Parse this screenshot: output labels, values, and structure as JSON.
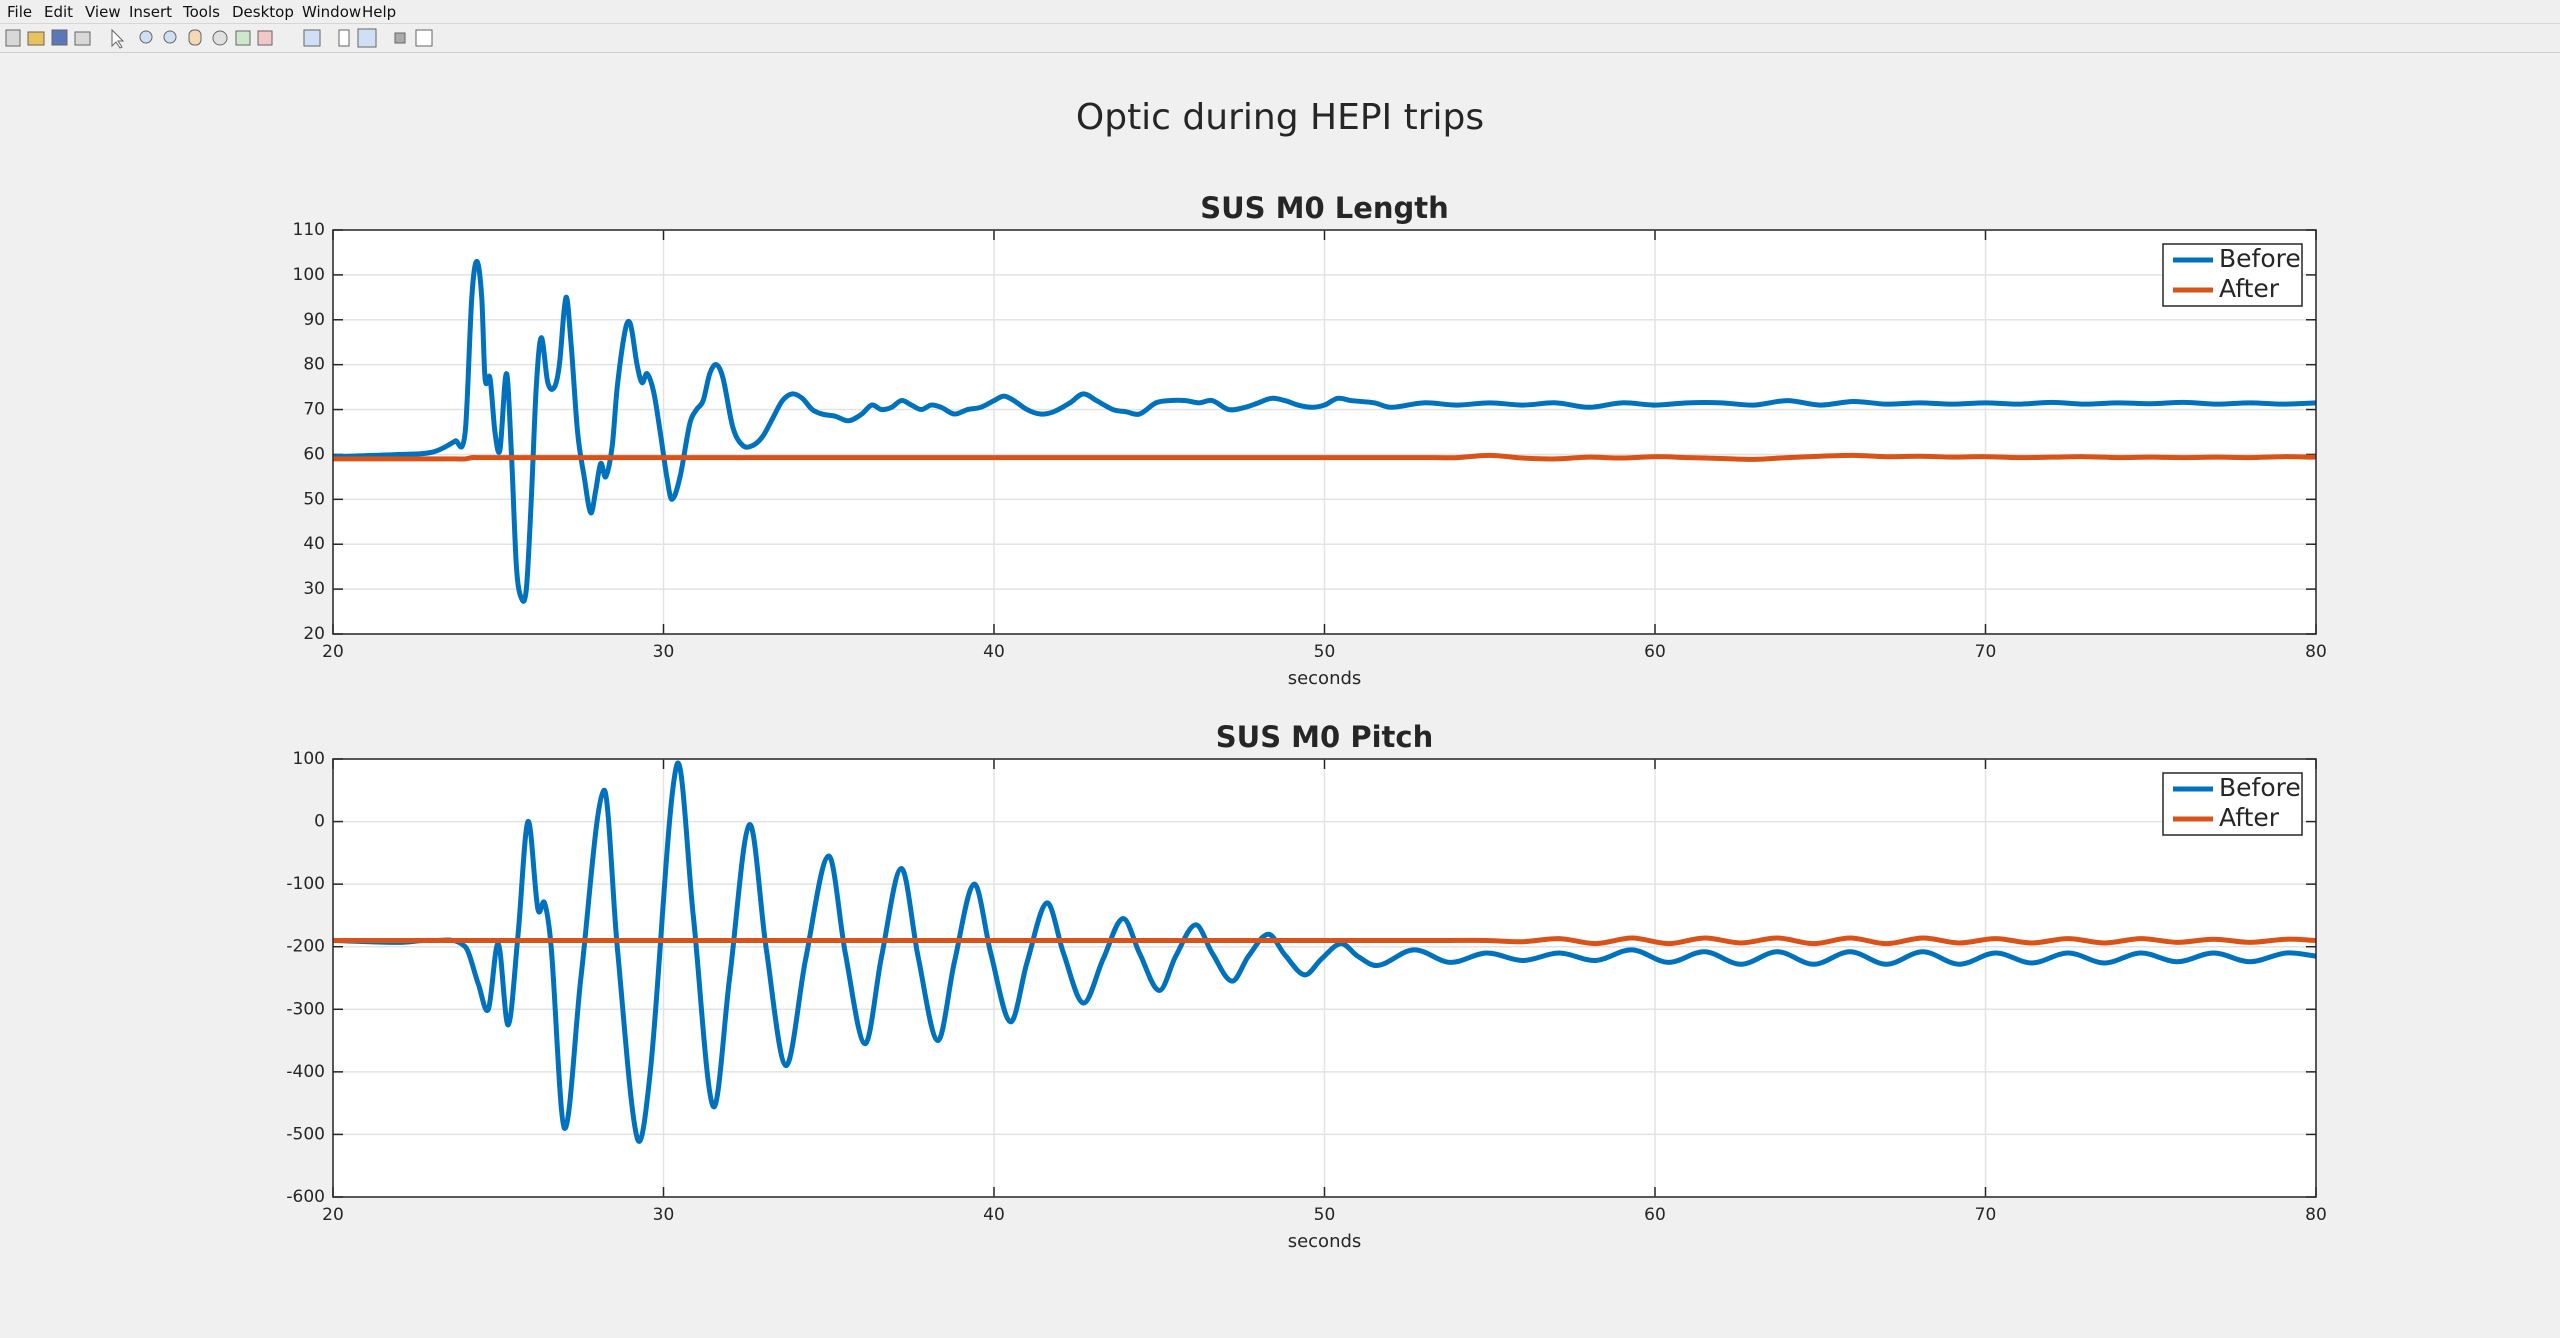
{
  "menu": [
    "File",
    "Edit",
    "View",
    "Insert",
    "Tools",
    "Desktop",
    "Window",
    "Help"
  ],
  "title": "Optic during HEPI trips",
  "chart_data": [
    {
      "type": "line",
      "title": "SUS M0 Length",
      "xlabel": "seconds",
      "x": [
        20,
        22,
        23,
        23.7,
        24.0,
        24.2,
        24.35,
        24.5,
        24.6,
        24.75,
        24.9,
        25.05,
        25.25,
        25.4,
        25.55,
        25.7,
        25.85,
        26.0,
        26.15,
        26.3,
        26.5,
        26.7,
        26.85,
        27.05,
        27.2,
        27.4,
        27.6,
        27.8,
        27.95,
        28.1,
        28.25,
        28.45,
        28.6,
        28.85,
        29.0,
        29.2,
        29.35,
        29.5,
        29.7,
        29.9,
        30.1,
        30.25,
        30.5,
        30.8,
        31.0,
        31.2,
        31.4,
        31.6,
        31.8,
        32.1,
        32.4,
        32.7,
        33.0,
        33.3,
        33.6,
        33.9,
        34.2,
        34.5,
        34.8,
        35.2,
        35.6,
        36.0,
        36.3,
        36.6,
        36.9,
        37.2,
        37.5,
        37.8,
        38.1,
        38.4,
        38.8,
        39.2,
        39.6,
        40.0,
        40.3,
        40.6,
        41.0,
        41.4,
        41.8,
        42.3,
        42.7,
        43.1,
        43.6,
        44.0,
        44.4,
        44.9,
        45.3,
        45.8,
        46.2,
        46.6,
        47.1,
        47.6,
        48.0,
        48.4,
        48.8,
        49.2,
        49.6,
        50.0,
        50.4,
        50.8,
        51.5,
        52,
        53,
        54,
        55,
        56,
        57,
        58,
        59,
        60,
        61,
        62,
        63,
        64,
        65,
        66,
        67,
        68,
        69,
        70,
        71,
        72,
        73,
        74,
        75,
        76,
        77,
        78,
        79,
        80
      ],
      "series": [
        {
          "name": "Before",
          "color": "#0072bd",
          "values": [
            59.5,
            60,
            60.5,
            63,
            65,
            95,
            103,
            95,
            77,
            77,
            65,
            61,
            78,
            60,
            35,
            28,
            30,
            50,
            75,
            86,
            76,
            75,
            80,
            95,
            85,
            65,
            55,
            47,
            52,
            58,
            55,
            62,
            75,
            88,
            89,
            80,
            76,
            78,
            74,
            65,
            55,
            50,
            55,
            67,
            70,
            72,
            78,
            80,
            77,
            66,
            62,
            62,
            64,
            68,
            72,
            73.5,
            72.5,
            70,
            69,
            68.5,
            67.5,
            69,
            71,
            70,
            70.5,
            72,
            71,
            70,
            71,
            70.5,
            69,
            70,
            70.5,
            72,
            73,
            72,
            70,
            69,
            69.5,
            71.5,
            73.5,
            72,
            70,
            69.5,
            69,
            71.5,
            72,
            72,
            71.5,
            72,
            70,
            70.5,
            71.5,
            72.5,
            72,
            71,
            70.5,
            71,
            72.5,
            72,
            71.5,
            70.5,
            71.5,
            71,
            71.5,
            71,
            71.5,
            70.5,
            71.5,
            71,
            71.5,
            71.5,
            71,
            72,
            71,
            71.8,
            71.2,
            71.5,
            71.2,
            71.5,
            71.2,
            71.6,
            71.2,
            71.5,
            71.3,
            71.6,
            71.2,
            71.5,
            71.2,
            71.5
          ]
        },
        {
          "name": "After",
          "color": "#d95319",
          "values": [
            59,
            59,
            59,
            59,
            59,
            59.3,
            59.3,
            59.3,
            59.3,
            59.3,
            59.3,
            59.3,
            59.3,
            59.3,
            59.3,
            59.3,
            59.3,
            59.3,
            59.3,
            59.3,
            59.3,
            59.3,
            59.3,
            59.3,
            59.3,
            59.3,
            59.3,
            59.3,
            59.3,
            59.3,
            59.3,
            59.3,
            59.3,
            59.3,
            59.3,
            59.3,
            59.3,
            59.3,
            59.3,
            59.3,
            59.3,
            59.3,
            59.3,
            59.3,
            59.3,
            59.3,
            59.3,
            59.3,
            59.3,
            59.3,
            59.3,
            59.3,
            59.3,
            59.3,
            59.3,
            59.3,
            59.3,
            59.3,
            59.3,
            59.3,
            59.3,
            59.3,
            59.3,
            59.3,
            59.3,
            59.3,
            59.3,
            59.3,
            59.3,
            59.3,
            59.3,
            59.3,
            59.3,
            59.3,
            59.3,
            59.3,
            59.3,
            59.3,
            59.3,
            59.3,
            59.3,
            59.3,
            59.3,
            59.3,
            59.3,
            59.3,
            59.3,
            59.3,
            59.3,
            59.3,
            59.3,
            59.3,
            59.3,
            59.3,
            59.3,
            59.3,
            59.3,
            59.3,
            59.3,
            59.3,
            59.3,
            59.3,
            59.3,
            59.3,
            59.8,
            59.2,
            59.0,
            59.4,
            59.2,
            59.5,
            59.3,
            59.1,
            58.9,
            59.3,
            59.6,
            59.8,
            59.5,
            59.6,
            59.4,
            59.5,
            59.3,
            59.4,
            59.5,
            59.3,
            59.4,
            59.3,
            59.4,
            59.3,
            59.5,
            59.4
          ]
        }
      ],
      "xlim": [
        20,
        80
      ],
      "xticks": [
        20,
        30,
        40,
        50,
        60,
        70,
        80
      ],
      "ylim": [
        20,
        110
      ],
      "yticks": [
        20,
        30,
        40,
        50,
        60,
        70,
        80,
        90,
        100,
        110
      ],
      "grid": true,
      "legend": "upper right"
    },
    {
      "type": "line",
      "title": "SUS M0 Pitch",
      "xlabel": "seconds",
      "x": [
        20,
        22,
        23,
        24.0,
        24.4,
        24.7,
        25.0,
        25.3,
        25.6,
        25.9,
        26.2,
        26.4,
        26.6,
        27.0,
        27.5,
        28.2,
        28.6,
        29.2,
        29.6,
        30.4,
        30.9,
        31.5,
        32.0,
        32.6,
        33.1,
        33.7,
        34.3,
        35.0,
        35.5,
        36.1,
        36.6,
        37.2,
        37.7,
        38.3,
        38.8,
        39.4,
        39.9,
        40.5,
        41.0,
        41.6,
        42.1,
        42.7,
        43.3,
        43.9,
        44.4,
        45.0,
        45.5,
        46.1,
        46.6,
        47.2,
        47.7,
        48.3,
        48.8,
        49.4,
        49.9,
        50.5,
        51.0,
        51.6,
        52.7,
        53.8,
        54.9,
        56.0,
        57.1,
        58.2,
        59.3,
        60.4,
        61.5,
        62.6,
        63.7,
        64.8,
        65.9,
        67.0,
        68.1,
        69.2,
        70.3,
        71.4,
        72.5,
        73.6,
        74.7,
        75.8,
        76.9,
        78.0,
        79.1,
        80
      ],
      "series": [
        {
          "name": "Before",
          "color": "#0072bd",
          "values": [
            -190,
            -193,
            -190,
            -200,
            -260,
            -300,
            -195,
            -325,
            -180,
            0,
            -140,
            -130,
            -200,
            -490,
            -250,
            50,
            -200,
            -505,
            -400,
            90,
            -150,
            -455,
            -250,
            -5,
            -200,
            -390,
            -220,
            -55,
            -210,
            -355,
            -215,
            -75,
            -215,
            -350,
            -225,
            -100,
            -210,
            -320,
            -225,
            -130,
            -210,
            -290,
            -220,
            -155,
            -210,
            -270,
            -215,
            -165,
            -210,
            -255,
            -215,
            -180,
            -213,
            -245,
            -220,
            -195,
            -215,
            -230,
            -205,
            -225,
            -210,
            -222,
            -210,
            -222,
            -205,
            -225,
            -208,
            -228,
            -208,
            -228,
            -208,
            -228,
            -208,
            -228,
            -210,
            -226,
            -210,
            -226,
            -210,
            -224,
            -210,
            -224,
            -210,
            -215
          ]
        },
        {
          "name": "After",
          "color": "#d95319",
          "values": [
            -190,
            -190,
            -190,
            -190,
            -190,
            -190,
            -190,
            -190,
            -190,
            -190,
            -190,
            -190,
            -190,
            -190,
            -190,
            -190,
            -190,
            -190,
            -190,
            -190,
            -190,
            -190,
            -190,
            -190,
            -190,
            -190,
            -190,
            -190,
            -190,
            -190,
            -190,
            -190,
            -190,
            -190,
            -190,
            -190,
            -190,
            -190,
            -190,
            -190,
            -190,
            -190,
            -190,
            -190,
            -190,
            -190,
            -190,
            -190,
            -190,
            -190,
            -190,
            -190,
            -190,
            -190,
            -190,
            -190,
            -190,
            -190,
            -190,
            -190,
            -190,
            -192,
            -187,
            -195,
            -186,
            -195,
            -186,
            -194,
            -186,
            -195,
            -186,
            -195,
            -186,
            -194,
            -187,
            -194,
            -187,
            -194,
            -187,
            -193,
            -188,
            -193,
            -188,
            -190
          ]
        }
      ],
      "xlim": [
        20,
        80
      ],
      "xticks": [
        20,
        30,
        40,
        50,
        60,
        70,
        80
      ],
      "ylim": [
        -600,
        100
      ],
      "yticks": [
        -600,
        -500,
        -400,
        -300,
        -200,
        -100,
        0,
        100
      ],
      "grid": true,
      "legend": "upper right"
    }
  ]
}
